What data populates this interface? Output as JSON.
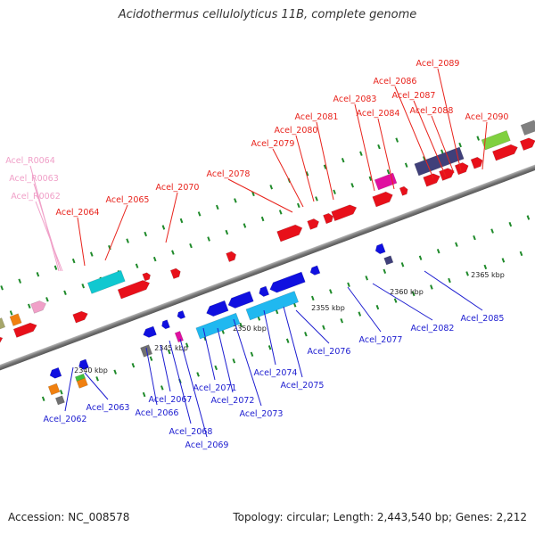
{
  "title": "Acidothermus cellulolyticus 11B, complete genome",
  "footer": {
    "accession": "Accession: NC_008578",
    "summary": "Topology: circular; Length: 2,443,540 bp; Genes: 2,212"
  },
  "colors": {
    "top_label": "#e8231c",
    "bottom_label": "#1c1cd0",
    "rna_label": "#f0a0c8",
    "backbone": "#888888"
  },
  "ticks": [
    "2340 kbp",
    "2345 kbp",
    "2350 kbp",
    "2355 kbp",
    "2360 kbp",
    "2365 kbp"
  ],
  "top_labels": [
    "Acel_2064",
    "Acel_2065",
    "Acel_2070",
    "Acel_2078",
    "Acel_2079",
    "Acel_2080",
    "Acel_2081",
    "Acel_2083",
    "Acel_2084",
    "Acel_2086",
    "Acel_2087",
    "Acel_2088",
    "Acel_2089",
    "Acel_2090"
  ],
  "rna_labels": [
    "Acel_R0064",
    "Acel_R0063",
    "Acel_R0062"
  ],
  "bottom_labels": [
    "Acel_2062",
    "Acel_2063",
    "Acel_2066",
    "Acel_2067",
    "Acel_2068",
    "Acel_2069",
    "Acel_2071",
    "Acel_2072",
    "Acel_2073",
    "Acel_2074",
    "Acel_2075",
    "Acel_2076",
    "Acel_2077",
    "Acel_2082",
    "Acel_2085"
  ]
}
